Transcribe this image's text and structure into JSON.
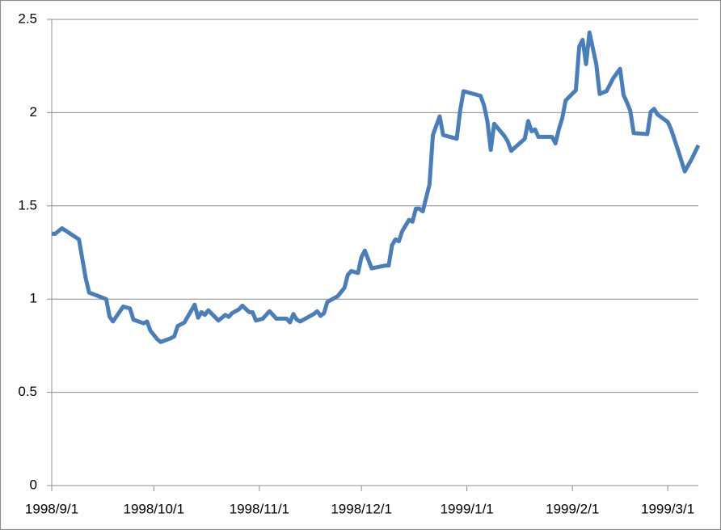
{
  "chart_data": {
    "type": "line",
    "x": [
      "1998/9/1",
      "1998/9/2",
      "1998/9/4",
      "1998/9/9",
      "1998/9/11",
      "1998/9/12",
      "1998/9/17",
      "1998/9/18",
      "1998/9/19",
      "1998/9/22",
      "1998/9/24",
      "1998/9/25",
      "1998/9/28",
      "1998/9/29",
      "1998/9/30",
      "1998/10/2",
      "1998/10/3",
      "1998/10/6",
      "1998/10/7",
      "1998/10/8",
      "1998/10/10",
      "1998/10/13",
      "1998/10/14",
      "1998/10/15",
      "1998/10/16",
      "1998/10/17",
      "1998/10/20",
      "1998/10/22",
      "1998/10/23",
      "1998/10/24",
      "1998/10/26",
      "1998/10/27",
      "1998/10/29",
      "1998/10/30",
      "1998/10/31",
      "1998/11/2",
      "1998/11/4",
      "1998/11/6",
      "1998/11/9",
      "1998/11/10",
      "1998/11/11",
      "1998/11/12",
      "1998/11/13",
      "1998/11/17",
      "1998/11/18",
      "1998/11/19",
      "1998/11/20",
      "1998/11/21",
      "1998/11/24",
      "1998/11/26",
      "1998/11/27",
      "1998/11/28",
      "1998/11/30",
      "1998/12/1",
      "1998/12/2",
      "1998/12/4",
      "1998/12/8",
      "1998/12/9",
      "1998/12/10",
      "1998/12/11",
      "1998/12/12",
      "1998/12/13",
      "1998/12/15",
      "1998/12/16",
      "1998/12/17",
      "1998/12/18",
      "1998/12/19",
      "1998/12/21",
      "1998/12/22",
      "1998/12/24",
      "1998/12/25",
      "1998/12/29",
      "1998/12/30",
      "1998/12/31",
      "1999/1/5",
      "1999/1/6",
      "1999/1/7",
      "1999/1/8",
      "1999/1/9",
      "1999/1/12",
      "1999/1/13",
      "1999/1/14",
      "1999/1/18",
      "1999/1/19",
      "1999/1/20",
      "1999/1/21",
      "1999/1/22",
      "1999/1/26",
      "1999/1/27",
      "1999/1/28",
      "1999/1/29",
      "1999/1/30",
      "1999/2/2",
      "1999/2/3",
      "1999/2/4",
      "1999/2/5",
      "1999/2/6",
      "1999/2/8",
      "1999/2/9",
      "1999/2/11",
      "1999/2/13",
      "1999/2/15",
      "1999/2/16",
      "1999/2/17",
      "1999/2/18",
      "1999/2/19",
      "1999/2/23",
      "1999/2/24",
      "1999/2/25",
      "1999/2/26",
      "1999/3/1",
      "1999/3/2",
      "1999/3/4",
      "1999/3/6",
      "1999/3/8",
      "1999/3/10"
    ],
    "series": [
      {
        "color": "#4a7ebb",
        "values": [
          1.35,
          1.35,
          1.38,
          1.32,
          1.11,
          1.035,
          1.0,
          0.905,
          0.88,
          0.96,
          0.95,
          0.89,
          0.87,
          0.88,
          0.83,
          0.785,
          0.77,
          0.79,
          0.8,
          0.855,
          0.875,
          0.97,
          0.9,
          0.93,
          0.915,
          0.94,
          0.885,
          0.915,
          0.905,
          0.925,
          0.945,
          0.965,
          0.93,
          0.93,
          0.885,
          0.895,
          0.935,
          0.895,
          0.895,
          0.875,
          0.92,
          0.89,
          0.88,
          0.92,
          0.935,
          0.91,
          0.925,
          0.985,
          1.015,
          1.06,
          1.13,
          1.15,
          1.14,
          1.225,
          1.26,
          1.165,
          1.18,
          1.18,
          1.29,
          1.32,
          1.31,
          1.365,
          1.425,
          1.415,
          1.485,
          1.485,
          1.47,
          1.615,
          1.88,
          1.98,
          1.88,
          1.86,
          2.01,
          2.115,
          2.09,
          2.04,
          1.955,
          1.8,
          1.94,
          1.875,
          1.845,
          1.795,
          1.86,
          1.955,
          1.9,
          1.91,
          1.87,
          1.87,
          1.835,
          1.91,
          1.97,
          2.065,
          2.12,
          2.355,
          2.39,
          2.26,
          2.43,
          2.26,
          2.1,
          2.115,
          2.185,
          2.235,
          2.095,
          2.055,
          2.01,
          1.89,
          1.885,
          2.005,
          2.02,
          1.99,
          1.95,
          1.91,
          1.8,
          1.685,
          1.75,
          1.825
        ]
      }
    ],
    "xlim": [
      "1998/9/1",
      "1999/3/10"
    ],
    "xticks": [
      "1998/9/1",
      "1998/10/1",
      "1998/11/1",
      "1998/12/1",
      "1999/1/1",
      "1999/2/1",
      "1999/3/1"
    ],
    "ylim": [
      0,
      2.5
    ],
    "yticks": [
      0,
      0.5,
      1,
      1.5,
      2,
      2.5
    ],
    "grid": true
  }
}
